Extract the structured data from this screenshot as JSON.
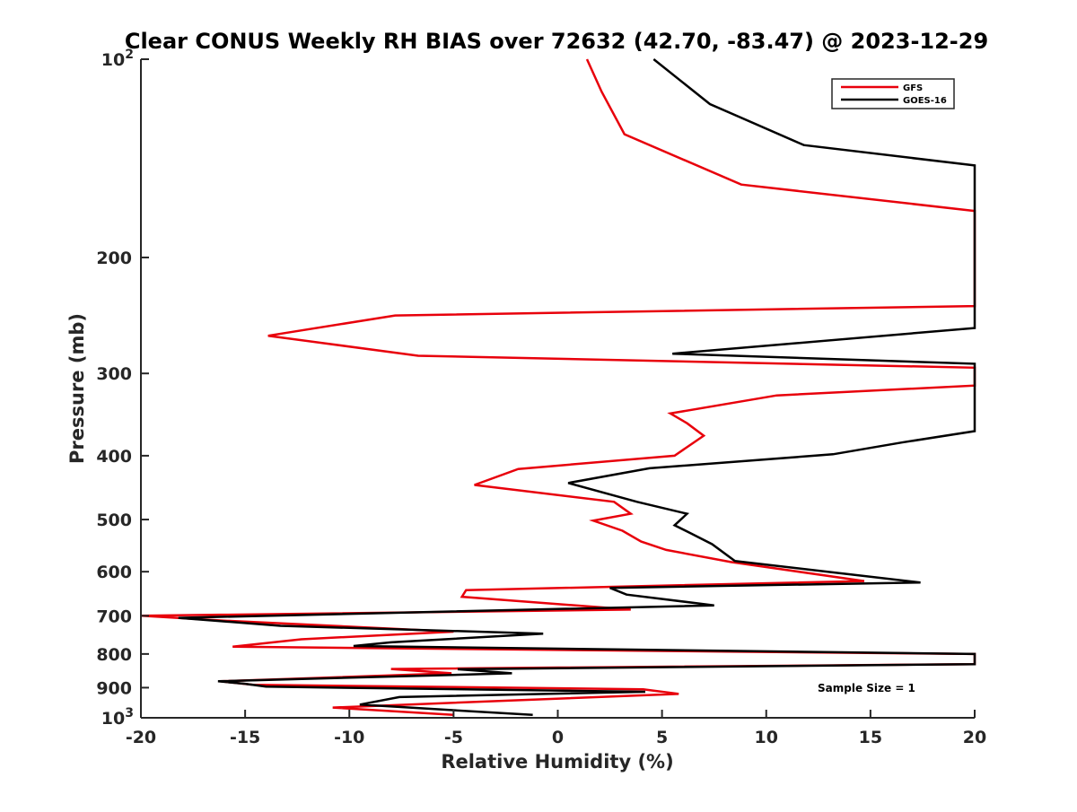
{
  "chart_data": {
    "type": "line",
    "title": "Clear CONUS Weekly RH BIAS over 72632 (42.70, -83.47) @ 2023-12-29",
    "xlabel": "Relative Humidity (%)",
    "ylabel": "Pressure (mb)",
    "xlim": [
      -20,
      20
    ],
    "ylim": [
      100,
      1000
    ],
    "yscale": "log",
    "y_reversed": true,
    "grid": false,
    "legend_position": "top-right",
    "annotation": "Sample Size = 1",
    "x_ticks": [
      -20,
      -15,
      -10,
      -5,
      0,
      5,
      10,
      15,
      20
    ],
    "y_ticks": [
      {
        "value": 100,
        "label": "10",
        "sup": "2"
      },
      {
        "value": 200,
        "label": "200",
        "sup": ""
      },
      {
        "value": 300,
        "label": "300",
        "sup": ""
      },
      {
        "value": 400,
        "label": "400",
        "sup": ""
      },
      {
        "value": 500,
        "label": "500",
        "sup": ""
      },
      {
        "value": 600,
        "label": "600",
        "sup": ""
      },
      {
        "value": 700,
        "label": "700",
        "sup": ""
      },
      {
        "value": 800,
        "label": "800",
        "sup": ""
      },
      {
        "value": 900,
        "label": "900",
        "sup": ""
      },
      {
        "value": 1000,
        "label": "10",
        "sup": "3"
      }
    ],
    "series": [
      {
        "name": "GFS",
        "color": "#e8000b",
        "points": [
          [
            1.4,
            100
          ],
          [
            2.1,
            112
          ],
          [
            3.2,
            130
          ],
          [
            8.8,
            155
          ],
          [
            20,
            170
          ],
          [
            20,
            237
          ],
          [
            -7.8,
            245
          ],
          [
            -13.9,
            263
          ],
          [
            -6.7,
            282
          ],
          [
            20,
            294
          ],
          [
            20,
            313
          ],
          [
            10.5,
            324
          ],
          [
            5.4,
            345
          ],
          [
            6.2,
            357
          ],
          [
            7.0,
            373
          ],
          [
            5.6,
            400
          ],
          [
            -1.9,
            419
          ],
          [
            -4.0,
            443
          ],
          [
            2.7,
            470
          ],
          [
            3.5,
            490
          ],
          [
            1.7,
            502
          ],
          [
            3.1,
            520
          ],
          [
            4.0,
            540
          ],
          [
            5.2,
            556
          ],
          [
            8.3,
            580
          ],
          [
            14.7,
            620
          ],
          [
            -4.4,
            640
          ],
          [
            -4.6,
            655
          ],
          [
            3.5,
            685
          ],
          [
            -20,
            700
          ],
          [
            -16.0,
            712
          ],
          [
            -5.0,
            740
          ],
          [
            -12.3,
            760
          ],
          [
            -15.6,
            780
          ],
          [
            20,
            800
          ],
          [
            20,
            829
          ],
          [
            -8.0,
            843
          ],
          [
            -5.1,
            856
          ],
          [
            -16.2,
            880
          ],
          [
            -14.6,
            891
          ],
          [
            4.1,
            905
          ],
          [
            5.8,
            920
          ],
          [
            -10.8,
            965
          ],
          [
            -5.0,
            990
          ]
        ]
      },
      {
        "name": "GOES-16",
        "color": "#000000",
        "points": [
          [
            4.6,
            100
          ],
          [
            7.3,
            117
          ],
          [
            11.8,
            135
          ],
          [
            20,
            145
          ],
          [
            20,
            256
          ],
          [
            5.5,
            280
          ],
          [
            20,
            290
          ],
          [
            20,
            367
          ],
          [
            16.5,
            382
          ],
          [
            13.2,
            398
          ],
          [
            4.4,
            418
          ],
          [
            0.5,
            440
          ],
          [
            3.8,
            470
          ],
          [
            6.2,
            490
          ],
          [
            5.6,
            510
          ],
          [
            6.4,
            525
          ],
          [
            7.4,
            545
          ],
          [
            8.5,
            578
          ],
          [
            17.4,
            623
          ],
          [
            2.5,
            635
          ],
          [
            3.3,
            650
          ],
          [
            7.5,
            675
          ],
          [
            -18.2,
            705
          ],
          [
            -13.3,
            725
          ],
          [
            -0.7,
            745
          ],
          [
            -8.0,
            768
          ],
          [
            -9.8,
            778
          ],
          [
            20,
            800
          ],
          [
            20,
            829
          ],
          [
            -4.8,
            844
          ],
          [
            -2.2,
            856
          ],
          [
            -16.3,
            880
          ],
          [
            -15.0,
            888
          ],
          [
            -14.0,
            897
          ],
          [
            4.2,
            913
          ],
          [
            -7.6,
            930
          ],
          [
            -9.5,
            955
          ],
          [
            -1.2,
            990
          ]
        ]
      }
    ]
  }
}
